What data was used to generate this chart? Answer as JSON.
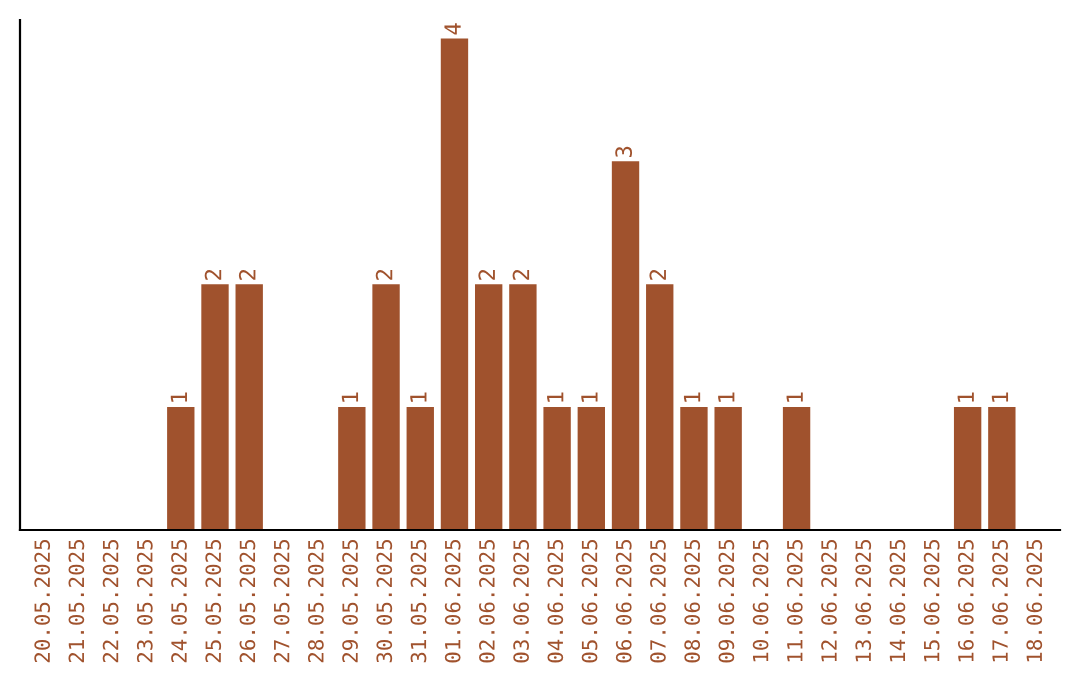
{
  "chart_data": {
    "type": "bar",
    "categories": [
      "20.05.2025",
      "21.05.2025",
      "22.05.2025",
      "23.05.2025",
      "24.05.2025",
      "25.05.2025",
      "26.05.2025",
      "27.05.2025",
      "28.05.2025",
      "29.05.2025",
      "30.05.2025",
      "31.05.2025",
      "01.06.2025",
      "02.06.2025",
      "03.06.2025",
      "04.06.2025",
      "05.06.2025",
      "06.06.2025",
      "07.06.2025",
      "08.06.2025",
      "09.06.2025",
      "10.06.2025",
      "11.06.2025",
      "12.06.2025",
      "13.06.2025",
      "14.06.2025",
      "15.06.2025",
      "16.06.2025",
      "17.06.2025",
      "18.06.2025"
    ],
    "values": [
      0,
      0,
      0,
      0,
      1,
      2,
      2,
      0,
      0,
      1,
      2,
      1,
      4,
      2,
      2,
      1,
      1,
      3,
      2,
      1,
      1,
      0,
      1,
      0,
      0,
      0,
      0,
      1,
      1,
      0
    ],
    "value_labels": [
      null,
      null,
      null,
      null,
      "1",
      "2",
      "2",
      null,
      null,
      "1",
      "2",
      "1",
      "4",
      "2",
      "2",
      "1",
      "1",
      "3",
      "2",
      "1",
      "1",
      null,
      "1",
      null,
      null,
      null,
      null,
      "1",
      "1",
      null
    ],
    "color": "#a0522d",
    "ylim": [
      0,
      4.15
    ],
    "tick_labels": "x",
    "grid": false,
    "legend": false
  }
}
